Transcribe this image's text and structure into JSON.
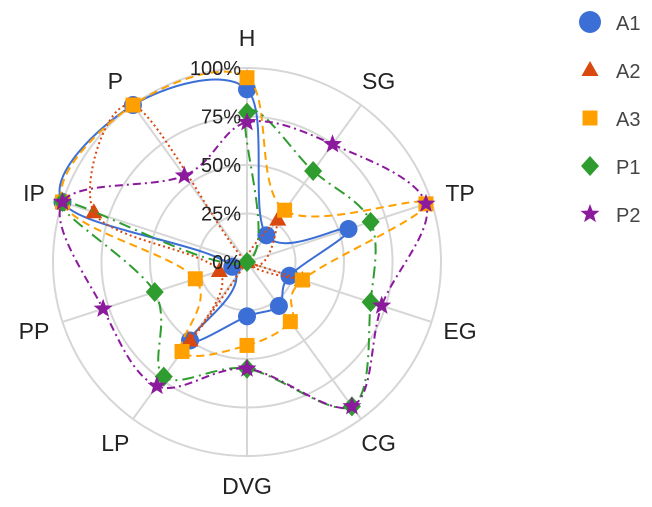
{
  "chart_data": {
    "type": "radar",
    "axes": [
      "H",
      "SG",
      "TP",
      "EG",
      "CG",
      "DVG",
      "LP",
      "PP",
      "IP",
      "P"
    ],
    "tick_labels": [
      "0%",
      "25%",
      "50%",
      "75%",
      "100%"
    ],
    "rlim": [
      0,
      100
    ],
    "grid": true,
    "legend_position": "right",
    "series": [
      {
        "name": "A1",
        "color": "#3b6fd6",
        "marker": "circle",
        "dash": "",
        "values": [
          89,
          17,
          55,
          23,
          28,
          28,
          50,
          8,
          100,
          100
        ]
      },
      {
        "name": "A2",
        "color": "#d9480f",
        "marker": "triangle",
        "dash": "2 3",
        "values": [
          0,
          27,
          0,
          30,
          0,
          0,
          50,
          15,
          83,
          100
        ]
      },
      {
        "name": "A3",
        "color": "#ffa000",
        "marker": "square",
        "dash": "8 5",
        "values": [
          95,
          33,
          97,
          30,
          38,
          43,
          57,
          28,
          100,
          100
        ]
      },
      {
        "name": "P1",
        "color": "#2e9c2e",
        "marker": "diamond",
        "dash": "12 5 2 5",
        "values": [
          77,
          58,
          67,
          67,
          92,
          55,
          73,
          50,
          100,
          0
        ]
      },
      {
        "name": "P2",
        "color": "#8b1a9c",
        "marker": "star",
        "dash": "8 4 2 4",
        "values": [
          72,
          75,
          97,
          73,
          92,
          55,
          79,
          78,
          100,
          55
        ]
      }
    ]
  }
}
